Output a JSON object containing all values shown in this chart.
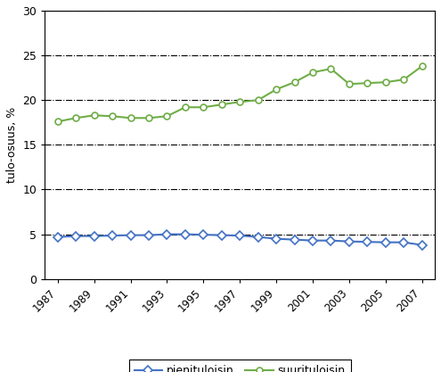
{
  "years": [
    1987,
    1988,
    1989,
    1990,
    1991,
    1992,
    1993,
    1994,
    1995,
    1996,
    1997,
    1998,
    1999,
    2000,
    2001,
    2002,
    2003,
    2004,
    2005,
    2006,
    2007
  ],
  "pieni": [
    4.7,
    4.8,
    4.8,
    4.85,
    4.9,
    4.9,
    5.0,
    5.0,
    4.95,
    4.9,
    4.85,
    4.7,
    4.5,
    4.4,
    4.3,
    4.3,
    4.2,
    4.15,
    4.1,
    4.1,
    3.8
  ],
  "suuri": [
    17.6,
    18.0,
    18.3,
    18.2,
    18.0,
    18.0,
    18.2,
    19.2,
    19.2,
    19.5,
    19.8,
    20.0,
    21.2,
    22.0,
    23.1,
    23.5,
    21.8,
    21.9,
    22.0,
    22.3,
    23.8
  ],
  "pieni_color": "#4472C4",
  "suuri_color": "#70AD47",
  "ylabel": "tulo-osuus, %",
  "ylim": [
    0,
    30
  ],
  "yticks": [
    0,
    5,
    10,
    15,
    20,
    25,
    30
  ],
  "xtick_years": [
    1987,
    1989,
    1991,
    1993,
    1995,
    1997,
    1999,
    2001,
    2003,
    2005,
    2007
  ],
  "xlim": [
    1986.3,
    2007.7
  ],
  "background_color": "#ffffff",
  "legend_pieni": "pienituloisin",
  "legend_suuri": "suurituloisin",
  "grid_color": "#000000",
  "grid_linestyle": "-.",
  "grid_linewidth": 0.8,
  "line_width": 1.5,
  "marker_size": 5
}
